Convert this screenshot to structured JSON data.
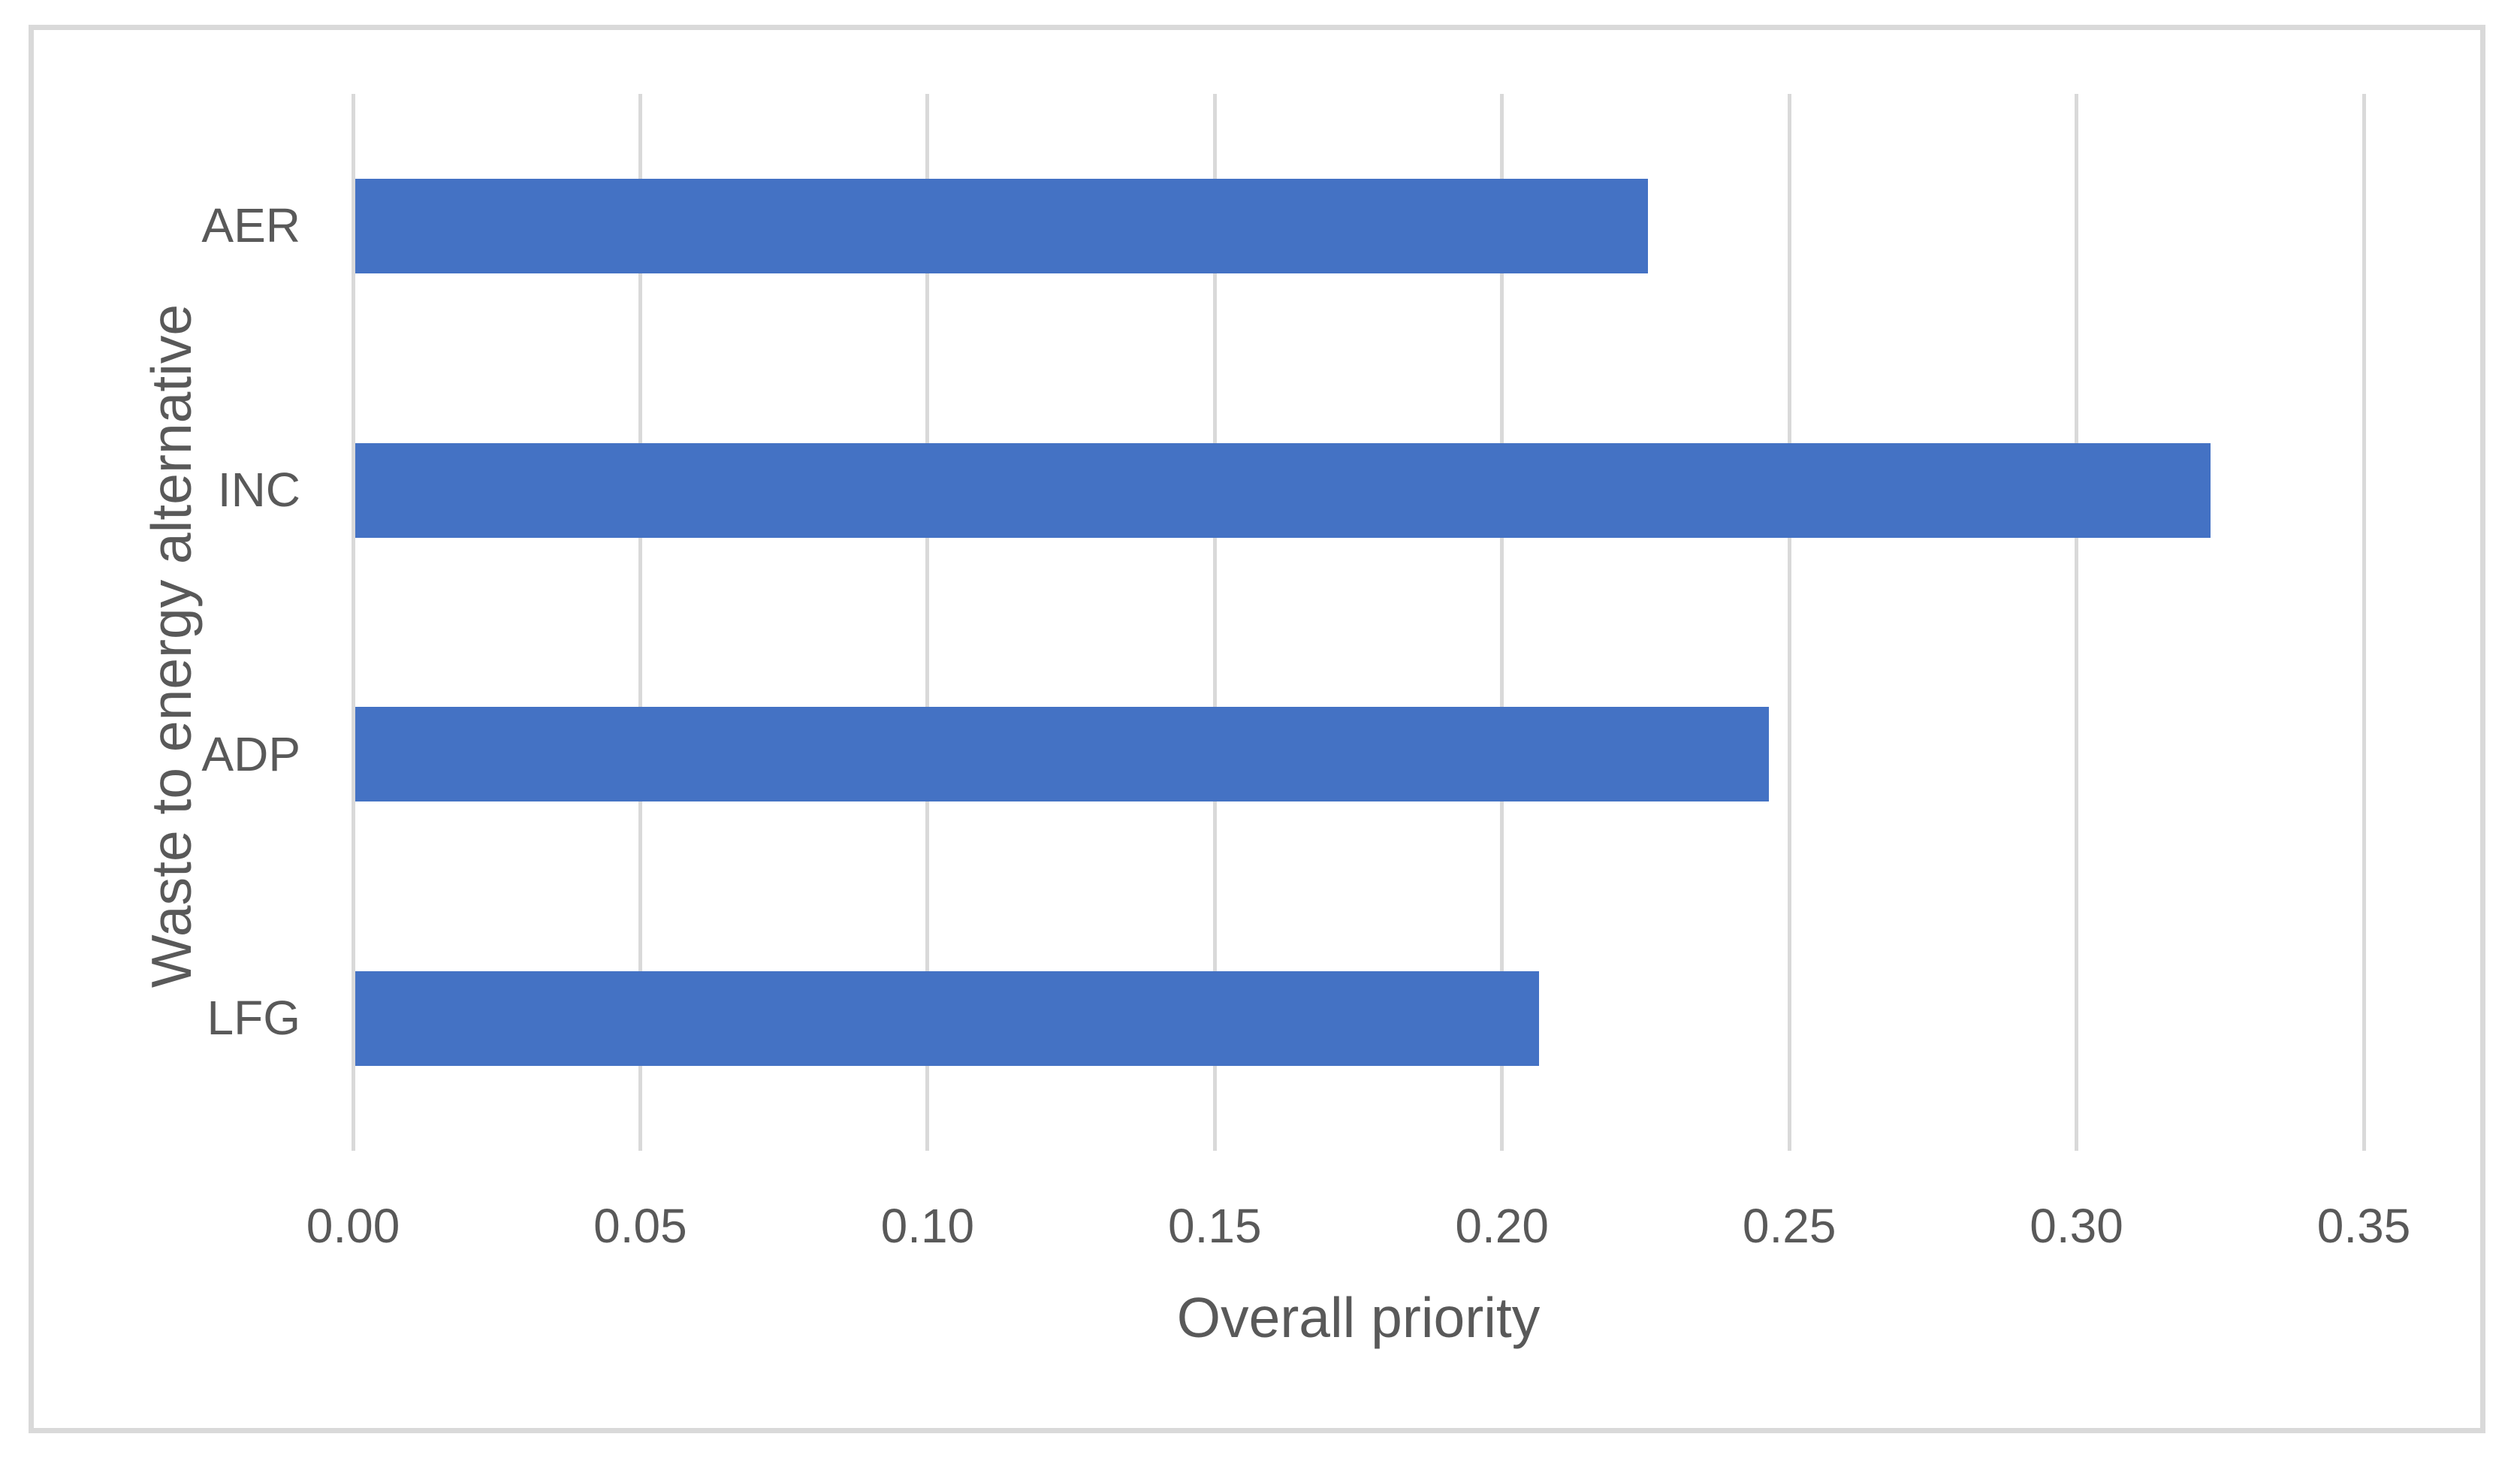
{
  "figure": {
    "background": "#FFFFFF",
    "border_color": "#D9D9D9"
  },
  "chart_data": {
    "type": "bar",
    "orientation": "horizontal",
    "title": "",
    "categories": [
      "AER",
      "INC",
      "ADP",
      "LFG"
    ],
    "values": [
      0.225,
      0.323,
      0.246,
      0.206
    ],
    "xlabel": "Overall priority",
    "ylabel": "Waste to energy alternative",
    "xlim": [
      0,
      0.35
    ],
    "xtick_step": 0.05,
    "xtick_labels": [
      "0.00",
      "0.05",
      "0.10",
      "0.15",
      "0.20",
      "0.25",
      "0.30",
      "0.35"
    ],
    "grid": true,
    "legend": false,
    "bar_color": "#4472C4",
    "grid_color": "#D9D9D9",
    "text_color": "#595959"
  }
}
